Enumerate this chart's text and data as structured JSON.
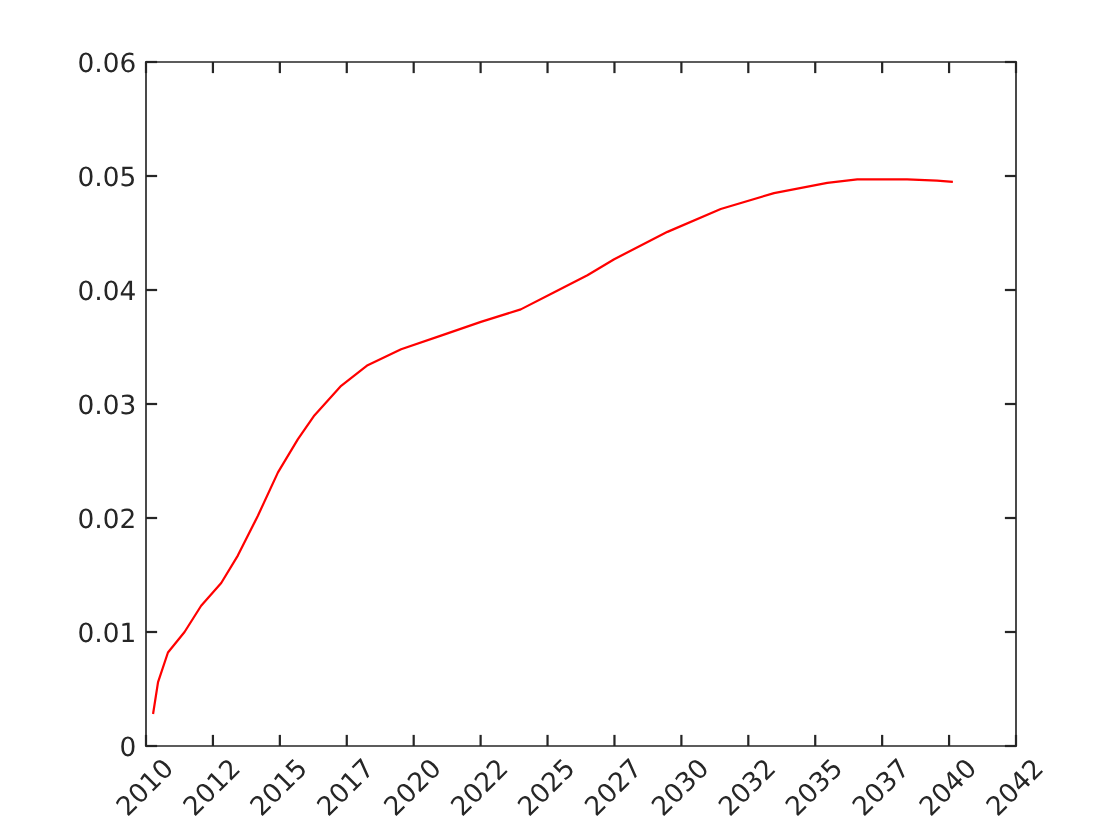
{
  "chart_data": {
    "type": "line",
    "x": [
      2010.27,
      2010.45,
      2010.82,
      2011.44,
      2012.06,
      2012.81,
      2013.43,
      2014.18,
      2014.93,
      2015.67,
      2016.29,
      2017.29,
      2018.28,
      2019.53,
      2021.02,
      2022.51,
      2024.0,
      2025.25,
      2026.49,
      2027.49,
      2029.48,
      2031.47,
      2033.46,
      2035.45,
      2036.57,
      2038.43,
      2039.55,
      2040.1
    ],
    "series": [
      {
        "color": "#ff0000",
        "values": [
          0.0029,
          0.0056,
          0.0082,
          0.01,
          0.0123,
          0.0143,
          0.0167,
          0.0202,
          0.024,
          0.0269,
          0.029,
          0.0316,
          0.0334,
          0.0348,
          0.036,
          0.0372,
          0.0383,
          0.0398,
          0.0413,
          0.0427,
          0.0451,
          0.0471,
          0.0485,
          0.0494,
          0.0497,
          0.0497,
          0.0496,
          0.0495
        ]
      }
    ],
    "xlim": [
      2010,
      2042.5
    ],
    "xticks": [
      2010,
      {
        "value": 2012.5,
        "label": "2012"
      },
      2015,
      {
        "value": 2017.5,
        "label": "2017"
      },
      2020,
      {
        "value": 2022.5,
        "label": "2022"
      },
      2025,
      {
        "value": 2027.5,
        "label": "2027"
      },
      2030,
      {
        "value": 2032.5,
        "label": "2032"
      },
      2035,
      {
        "value": 2037.5,
        "label": "2037"
      },
      2040,
      {
        "value": 2042.5,
        "label": "2042"
      }
    ],
    "ylim": [
      0,
      0.06
    ],
    "yticks": [
      {
        "value": 0,
        "label": "0"
      },
      {
        "value": 0.01,
        "label": "0.01"
      },
      {
        "value": 0.02,
        "label": "0.02"
      },
      {
        "value": 0.03,
        "label": "0.03"
      },
      {
        "value": 0.04,
        "label": "0.04"
      },
      {
        "value": 0.05,
        "label": "0.05"
      },
      {
        "value": 0.06,
        "label": "0.06"
      }
    ],
    "grid": false,
    "legend": false
  }
}
